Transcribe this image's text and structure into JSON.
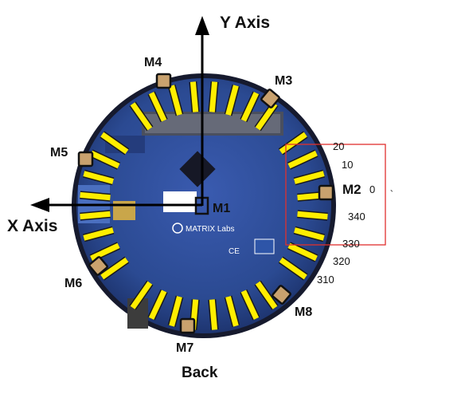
{
  "axes": {
    "y_label": "Y Axis",
    "x_label": "X Axis",
    "back_label": "Back"
  },
  "motors": {
    "m1": "M1",
    "m2": "M2",
    "m3": "M3",
    "m4": "M4",
    "m5": "M5",
    "m6": "M6",
    "m7": "M7",
    "m8": "M8"
  },
  "angle_labels": {
    "a20": "20",
    "a10": "10",
    "a0": "0",
    "a340": "340",
    "a330": "330",
    "a320": "320",
    "a310": "310"
  },
  "board": {
    "brand_text": "MATRIX Labs",
    "ce_mark": "CE"
  },
  "stray_mark": "、",
  "colors": {
    "board_blue": "#2b4a92",
    "board_dark": "#1a2347",
    "led_yellow": "#ffee00",
    "pad_tan": "#c9a26e",
    "highlight_red": "#e0302e",
    "axis_black": "#000000"
  }
}
